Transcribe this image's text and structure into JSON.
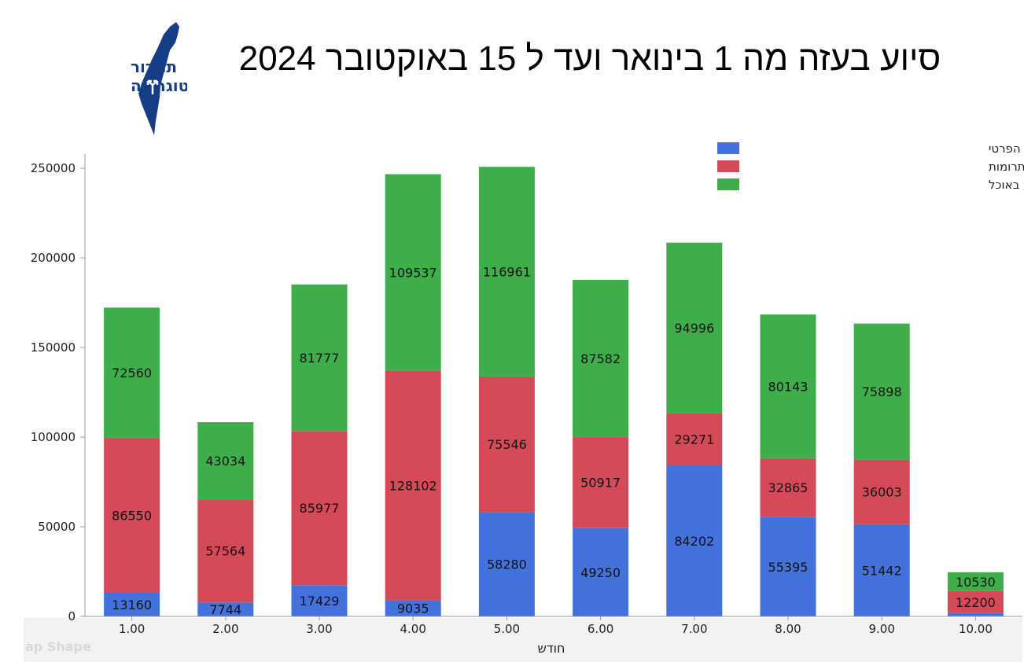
{
  "title": "סיוע בעזה מה 1 בינואר ועד ל 15 באוקטובר 2024",
  "logo": {
    "line1": "תמרור",
    "line2": "פוליטוגרפיה"
  },
  "watermark": "ap Shape",
  "colors": {
    "private": "#4472DC",
    "donations": "#D44A58",
    "food": "#3DAE49"
  },
  "chart_data": {
    "type": "bar",
    "stacked": true,
    "categories": [
      "1.00",
      "2.00",
      "3.00",
      "4.00",
      "5.00",
      "6.00",
      "7.00",
      "8.00",
      "9.00",
      "10.00"
    ],
    "series": [
      {
        "name": "סה\"כ טונות של סיוע על ידי המגזר הפרטי",
        "color": "#4472DC",
        "values": [
          13160,
          7744,
          17429,
          9035,
          58280,
          49250,
          84202,
          55395,
          51442,
          1900
        ],
        "labels": [
          "13160",
          "7744",
          "17429",
          "9035",
          "58280",
          "49250",
          "84202",
          "55395",
          "51442",
          ""
        ]
      },
      {
        "name": "סה\"כ טונות של סיוע על מתרומות",
        "color": "#D44A58",
        "values": [
          86550,
          57564,
          85977,
          128102,
          75546,
          50917,
          29271,
          32865,
          36003,
          12200
        ],
        "labels": [
          "86550",
          "57564",
          "85977",
          "128102",
          "75546",
          "50917",
          "29271",
          "32865",
          "36003",
          "12200"
        ]
      },
      {
        "name": "סה\"כ טונות של סיוע באוכל",
        "color": "#3DAE49",
        "values": [
          72560,
          43034,
          81777,
          109537,
          116961,
          87582,
          94996,
          80143,
          75898,
          10530
        ],
        "labels": [
          "72560",
          "43034",
          "81777",
          "109537",
          "116961",
          "87582",
          "94996",
          "80143",
          "75898",
          "10530"
        ]
      }
    ],
    "xlabel": "חודש",
    "ylabel": "",
    "ylim": [
      0,
      260000
    ],
    "yticks": [
      "0",
      "50000",
      "100000",
      "150000",
      "200000",
      "250000"
    ],
    "legend": "top-right",
    "grid": false
  }
}
